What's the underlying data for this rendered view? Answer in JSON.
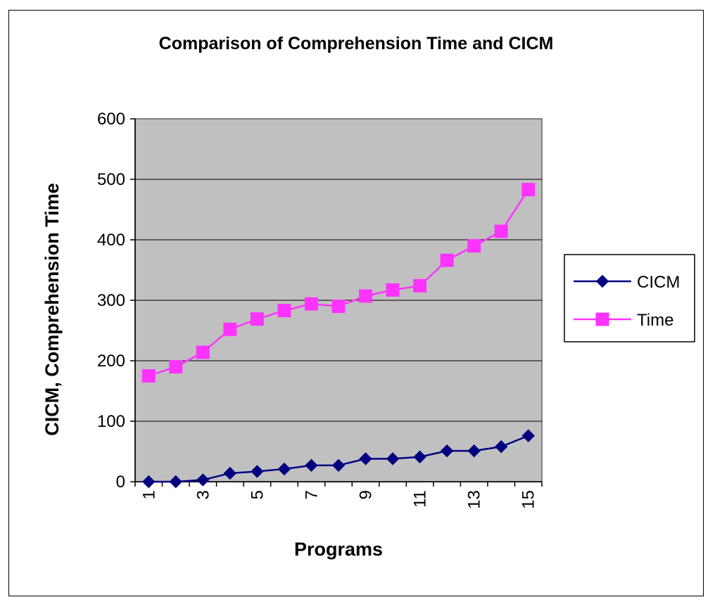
{
  "chart_data": {
    "type": "line",
    "title": "Comparison of Comprehension Time and CICM",
    "xlabel": "Programs",
    "ylabel": "CICM, Comprehension Time",
    "categories": [
      "1",
      "2",
      "3",
      "4",
      "5",
      "6",
      "7",
      "8",
      "9",
      "10",
      "11",
      "12",
      "13",
      "14",
      "15"
    ],
    "x_tick_labels": [
      "1",
      "3",
      "5",
      "7",
      "9",
      "11",
      "13",
      "15"
    ],
    "y_ticks": [
      "0",
      "100",
      "200",
      "300",
      "400",
      "500",
      "600"
    ],
    "ylim": [
      0,
      600
    ],
    "grid": "horizontal",
    "legend_position": "right",
    "plot_background": "#c0c0c0",
    "series": [
      {
        "name": "CICM",
        "color": "#000080",
        "marker": "diamond",
        "values": [
          0,
          0,
          3,
          14,
          17,
          21,
          27,
          27,
          38,
          38,
          41,
          51,
          51,
          58,
          76
        ]
      },
      {
        "name": "Time",
        "color": "#ff33ff",
        "marker": "square",
        "values": [
          175,
          190,
          214,
          252,
          269,
          283,
          294,
          290,
          307,
          317,
          324,
          366,
          390,
          414,
          483
        ]
      }
    ]
  }
}
